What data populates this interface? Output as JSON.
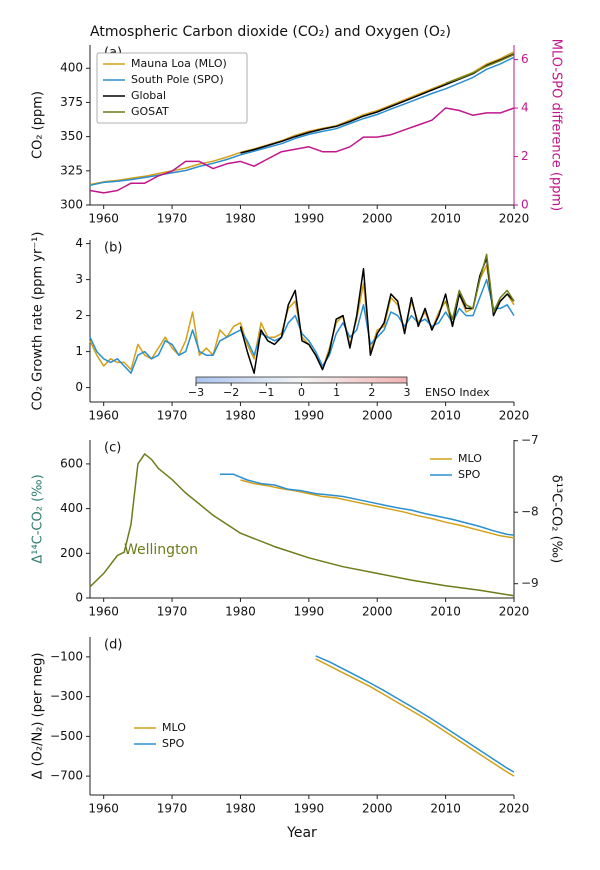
{
  "chart_data": [
    {
      "type": "line",
      "title": "Atmospheric Carbon dioxide (CO₂) and Oxygen (O₂)",
      "label": "(a)",
      "ylabel": "CO₂ (ppm)",
      "y2label": "MLO-SPO difference (ppm)",
      "y2color": "#c0168c",
      "xlim": [
        1958,
        2020
      ],
      "xticks": [
        1960,
        1970,
        1980,
        1990,
        2000,
        2010,
        2020
      ],
      "ylim": [
        300,
        417
      ],
      "yticks": [
        300,
        325,
        350,
        375,
        400
      ],
      "y2lim": [
        0,
        6.6
      ],
      "y2ticks": [
        0,
        2,
        4,
        6
      ],
      "legend": "upper left",
      "series": [
        {
          "name": "Mauna Loa (MLO)",
          "color": "#d4a017",
          "x": [
            1958,
            1960,
            1962,
            1964,
            1966,
            1968,
            1970,
            1972,
            1974,
            1976,
            1978,
            1980,
            1982,
            1984,
            1986,
            1988,
            1990,
            1992,
            1994,
            1996,
            1998,
            2000,
            2002,
            2004,
            2006,
            2008,
            2010,
            2012,
            2014,
            2016,
            2018,
            2020
          ],
          "values": [
            315,
            317,
            318,
            319.5,
            321,
            323,
            325,
            327,
            330,
            332,
            335,
            338.5,
            341,
            344,
            347,
            351,
            354,
            356,
            358,
            362,
            366,
            369,
            373,
            377,
            381,
            385,
            389,
            393,
            397,
            403,
            407,
            412
          ]
        },
        {
          "name": "South Pole (SPO)",
          "color": "#2a8fd0",
          "x": [
            1958,
            1960,
            1962,
            1964,
            1966,
            1968,
            1970,
            1972,
            1974,
            1976,
            1978,
            1980,
            1982,
            1984,
            1986,
            1988,
            1990,
            1992,
            1994,
            1996,
            1998,
            2000,
            2002,
            2004,
            2006,
            2008,
            2010,
            2012,
            2014,
            2016,
            2018,
            2020
          ],
          "values": [
            314.4,
            316.5,
            317.4,
            318.6,
            320.1,
            321.8,
            323.6,
            325.2,
            328.2,
            330.5,
            333.3,
            336.7,
            339.4,
            342.1,
            344.8,
            348.7,
            351.6,
            353.8,
            355.8,
            359.6,
            363.2,
            366.2,
            370.1,
            373.9,
            377.7,
            381.5,
            385,
            389.1,
            393.3,
            399.2,
            403.2,
            408
          ]
        },
        {
          "name": "Global",
          "color": "#000000",
          "x": [
            1980,
            1982,
            1984,
            1986,
            1988,
            1990,
            1992,
            1994,
            1996,
            1998,
            2000,
            2002,
            2004,
            2006,
            2008,
            2010,
            2012,
            2014,
            2016,
            2018,
            2020
          ],
          "values": [
            338,
            340.5,
            343.5,
            346.5,
            350,
            353,
            355.5,
            357.5,
            361,
            365,
            368,
            372,
            376,
            380,
            384,
            388,
            392,
            396,
            402,
            406,
            410.5
          ]
        },
        {
          "name": "GOSAT",
          "color": "#6b7d1a",
          "x": [
            2010,
            2012,
            2014,
            2016,
            2018,
            2020
          ],
          "values": [
            389,
            392.5,
            396.5,
            401.5,
            405.5,
            410
          ]
        },
        {
          "color": "#c0168c",
          "axis": "y2",
          "x": [
            1958,
            1960,
            1962,
            1964,
            1966,
            1968,
            1970,
            1972,
            1974,
            1976,
            1978,
            1980,
            1982,
            1984,
            1986,
            1988,
            1990,
            1992,
            1994,
            1996,
            1998,
            2000,
            2002,
            2004,
            2006,
            2008,
            2010,
            2012,
            2014,
            2016,
            2018,
            2020
          ],
          "values": [
            0.6,
            0.5,
            0.6,
            0.9,
            0.9,
            1.2,
            1.4,
            1.8,
            1.8,
            1.5,
            1.7,
            1.8,
            1.6,
            1.9,
            2.2,
            2.3,
            2.4,
            2.2,
            2.2,
            2.4,
            2.8,
            2.8,
            2.9,
            3.1,
            3.3,
            3.5,
            4.0,
            3.9,
            3.7,
            3.8,
            3.8,
            4.0
          ]
        }
      ]
    },
    {
      "type": "line",
      "label": "(b)",
      "ylabel": "CO₂ Growth rate (ppm yr⁻¹)",
      "xlim": [
        1958,
        2020
      ],
      "xticks": [
        1960,
        1970,
        1980,
        1990,
        2000,
        2010,
        2020
      ],
      "ylim": [
        -0.4,
        4.1
      ],
      "yticks": [
        0,
        1,
        2,
        3,
        4
      ],
      "enso_colorbar": {
        "label": "ENSO Index",
        "lim": [
          -3,
          3
        ],
        "ticks": [
          {
            "value": -3,
            "label": "−3"
          },
          {
            "value": -2,
            "label": "−2"
          },
          {
            "value": -1,
            "label": "−1"
          },
          0,
          1,
          2,
          3
        ]
      },
      "series": [
        {
          "color": "#d4a017",
          "x": [
            1958,
            1959,
            1960,
            1961,
            1962,
            1963,
            1964,
            1965,
            1966,
            1967,
            1968,
            1969,
            1970,
            1971,
            1972,
            1973,
            1974,
            1975,
            1976,
            1977,
            1978,
            1979,
            1980,
            1981,
            1982,
            1983,
            1984,
            1985,
            1986,
            1987,
            1988,
            1989,
            1990,
            1991,
            1992,
            1993,
            1994,
            1995,
            1996,
            1997,
            1998,
            1999,
            2000,
            2001,
            2002,
            2003,
            2004,
            2005,
            2006,
            2007,
            2008,
            2009,
            2010,
            2011,
            2012,
            2013,
            2014,
            2015,
            2016,
            2017,
            2018,
            2019,
            2020
          ],
          "values": [
            1.3,
            0.9,
            0.6,
            0.8,
            0.7,
            0.7,
            0.5,
            1.2,
            0.9,
            0.8,
            1.1,
            1.4,
            1.1,
            0.9,
            1.3,
            2.1,
            0.9,
            1.1,
            0.9,
            1.6,
            1.4,
            1.7,
            1.8,
            1.2,
            0.8,
            1.8,
            1.4,
            1.4,
            1.5,
            2.2,
            2.4,
            1.4,
            1.2,
            0.9,
            0.5,
            1.1,
            1.8,
            2.0,
            1.2,
            1.9,
            2.9,
            1.0,
            1.6,
            1.7,
            2.5,
            2.3,
            1.6,
            2.4,
            1.8,
            2.1,
            1.6,
            2.1,
            2.4,
            1.7,
            2.6,
            2.1,
            2.2,
            3.0,
            3.4,
            2.1,
            2.4,
            2.6,
            2.3
          ]
        },
        {
          "color": "#2a8fd0",
          "x": [
            1958,
            1959,
            1960,
            1961,
            1962,
            1963,
            1964,
            1965,
            1966,
            1967,
            1968,
            1969,
            1970,
            1971,
            1972,
            1973,
            1974,
            1975,
            1976,
            1977,
            1978,
            1979,
            1980,
            1981,
            1982,
            1983,
            1984,
            1985,
            1986,
            1987,
            1988,
            1989,
            1990,
            1991,
            1992,
            1993,
            1994,
            1995,
            1996,
            1997,
            1998,
            1999,
            2000,
            2001,
            2002,
            2003,
            2004,
            2005,
            2006,
            2007,
            2008,
            2009,
            2010,
            2011,
            2012,
            2013,
            2014,
            2015,
            2016,
            2017,
            2018,
            2019,
            2020
          ],
          "values": [
            1.4,
            1.0,
            0.8,
            0.7,
            0.8,
            0.6,
            0.4,
            0.9,
            1.0,
            0.8,
            0.9,
            1.3,
            1.2,
            0.9,
            1.0,
            1.6,
            1.0,
            0.9,
            0.9,
            1.3,
            1.4,
            1.5,
            1.6,
            1.3,
            0.9,
            1.5,
            1.4,
            1.3,
            1.4,
            1.8,
            2.0,
            1.5,
            1.3,
            1.0,
            0.6,
            0.9,
            1.5,
            1.8,
            1.4,
            1.6,
            2.3,
            1.2,
            1.4,
            1.6,
            2.1,
            2.0,
            1.7,
            2.0,
            1.8,
            1.9,
            1.7,
            1.8,
            2.1,
            1.8,
            2.2,
            2.0,
            2.0,
            2.5,
            3.0,
            2.2,
            2.2,
            2.3,
            2.0
          ]
        },
        {
          "color": "#000000",
          "x": [
            1980,
            1981,
            1982,
            1983,
            1984,
            1985,
            1986,
            1987,
            1988,
            1989,
            1990,
            1991,
            1992,
            1993,
            1994,
            1995,
            1996,
            1997,
            1998,
            1999,
            2000,
            2001,
            2002,
            2003,
            2004,
            2005,
            2006,
            2007,
            2008,
            2009,
            2010,
            2011,
            2012,
            2013,
            2014,
            2015,
            2016,
            2017,
            2018,
            2019,
            2020
          ],
          "values": [
            1.7,
            1.0,
            0.4,
            1.6,
            1.3,
            1.2,
            1.4,
            2.3,
            2.7,
            1.3,
            1.2,
            0.9,
            0.5,
            1.0,
            1.9,
            2.0,
            1.1,
            2.0,
            3.3,
            0.9,
            1.5,
            1.8,
            2.6,
            2.4,
            1.5,
            2.5,
            1.7,
            2.2,
            1.6,
            2.0,
            2.6,
            1.7,
            2.6,
            2.2,
            2.2,
            3.1,
            3.6,
            2.0,
            2.4,
            2.6,
            2.4
          ]
        },
        {
          "color": "#6b7d1a",
          "x": [
            2010,
            2011,
            2012,
            2013,
            2014,
            2015,
            2016,
            2017,
            2018,
            2019,
            2020
          ],
          "values": [
            2.4,
            1.9,
            2.7,
            2.3,
            2.2,
            3.0,
            3.7,
            2.1,
            2.5,
            2.7,
            2.4
          ]
        }
      ]
    },
    {
      "type": "line",
      "label": "(c)",
      "ylabel": "Δ¹⁴C-CO₂ (‰)",
      "ylabel_color": "#2e7d6e",
      "y2label": "δ¹³C-CO₂ (‰)",
      "annotation": "Wellington",
      "xlim": [
        1958,
        2020
      ],
      "xticks": [
        1960,
        1970,
        1980,
        1990,
        2000,
        2010,
        2020
      ],
      "ylim": [
        0,
        707
      ],
      "yticks": [
        0,
        200,
        400,
        600
      ],
      "y2lim": [
        -9.2,
        -6.99
      ],
      "y2ticks": [
        {
          "value": -9,
          "label": "−9"
        },
        {
          "value": -8,
          "label": "−8"
        },
        {
          "value": -7,
          "label": "−7"
        }
      ],
      "legend": "upper right",
      "series": [
        {
          "color": "#6b7d1a",
          "x": [
            1958,
            1960,
            1962,
            1963,
            1964,
            1965,
            1966,
            1967,
            1968,
            1970,
            1972,
            1974,
            1976,
            1978,
            1980,
            1985,
            1990,
            1995,
            2000,
            2005,
            2010,
            2015,
            2020
          ],
          "values": [
            50,
            110,
            190,
            205,
            330,
            600,
            645,
            620,
            580,
            530,
            470,
            420,
            370,
            330,
            290,
            230,
            180,
            140,
            110,
            80,
            55,
            35,
            10
          ]
        },
        {
          "name": "MLO",
          "color": "#d4a017",
          "axis": "y2",
          "x": [
            1980,
            1982,
            1984,
            1986,
            1988,
            1990,
            1992,
            1994,
            1996,
            1998,
            2000,
            2002,
            2004,
            2006,
            2008,
            2010,
            2012,
            2014,
            2016,
            2018,
            2020
          ],
          "values": [
            -7.55,
            -7.6,
            -7.63,
            -7.67,
            -7.7,
            -7.74,
            -7.78,
            -7.8,
            -7.84,
            -7.88,
            -7.92,
            -7.96,
            -8.0,
            -8.05,
            -8.09,
            -8.14,
            -8.18,
            -8.23,
            -8.28,
            -8.33,
            -8.36
          ]
        },
        {
          "name": "SPO",
          "color": "#2a8fd0",
          "axis": "y2",
          "x": [
            1977,
            1979,
            1981,
            1983,
            1985,
            1987,
            1989,
            1991,
            1993,
            1995,
            1997,
            1999,
            2001,
            2003,
            2005,
            2007,
            2009,
            2011,
            2013,
            2015,
            2017,
            2019,
            2020
          ],
          "values": [
            -7.47,
            -7.47,
            -7.55,
            -7.6,
            -7.62,
            -7.68,
            -7.7,
            -7.74,
            -7.76,
            -7.78,
            -7.82,
            -7.86,
            -7.9,
            -7.94,
            -7.97,
            -8.02,
            -8.06,
            -8.1,
            -8.15,
            -8.2,
            -8.26,
            -8.31,
            -8.32
          ]
        }
      ]
    },
    {
      "type": "line",
      "label": "(d)",
      "ylabel": "Δ (O₂/N₂) (per meg)",
      "xlabel": "Year",
      "xlim": [
        1958,
        2020
      ],
      "xticks": [
        1960,
        1970,
        1980,
        1990,
        2000,
        2010,
        2020
      ],
      "ylim": [
        -795,
        0
      ],
      "yticks": [
        {
          "value": -700,
          "label": "−700"
        },
        {
          "value": -500,
          "label": "−500"
        },
        {
          "value": -300,
          "label": "−300"
        },
        {
          "value": -100,
          "label": "−100"
        }
      ],
      "legend": "lower left",
      "series": [
        {
          "name": "MLO",
          "color": "#d4a017",
          "x": [
            1991,
            1993,
            1995,
            1997,
            1999,
            2001,
            2003,
            2005,
            2007,
            2009,
            2011,
            2013,
            2015,
            2017,
            2019,
            2020
          ],
          "values": [
            -110,
            -145,
            -180,
            -215,
            -250,
            -290,
            -330,
            -370,
            -410,
            -455,
            -500,
            -545,
            -590,
            -635,
            -680,
            -700
          ]
        },
        {
          "name": "SPO",
          "color": "#2a8fd0",
          "x": [
            1991,
            1993,
            1995,
            1997,
            1999,
            2001,
            2003,
            2005,
            2007,
            2009,
            2011,
            2013,
            2015,
            2017,
            2019,
            2020
          ],
          "values": [
            -95,
            -125,
            -160,
            -195,
            -232,
            -270,
            -310,
            -350,
            -392,
            -435,
            -480,
            -525,
            -570,
            -615,
            -660,
            -680
          ]
        }
      ]
    }
  ]
}
